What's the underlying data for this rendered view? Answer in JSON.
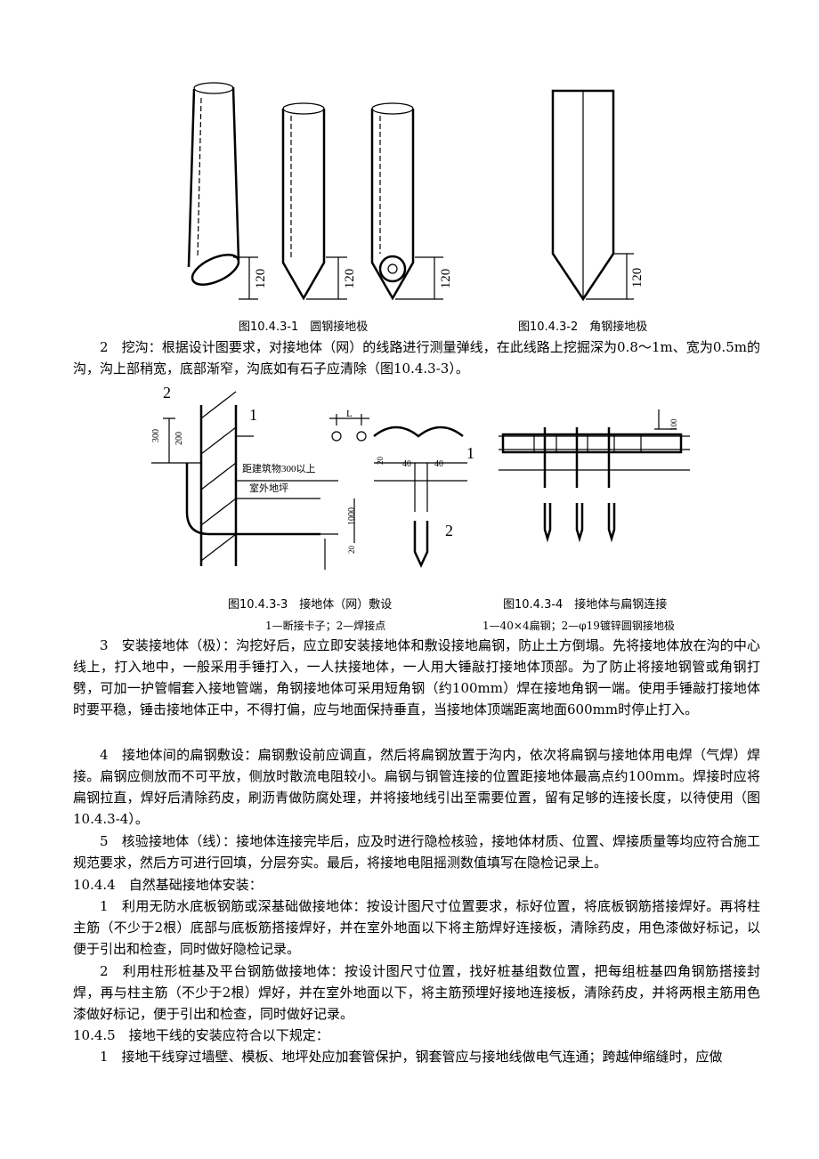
{
  "figures": [
    {
      "caption": "图10.4.3-1　圆钢接地极",
      "dimensions": [
        "120",
        "120",
        "120"
      ]
    },
    {
      "caption": "图10.4.3-2　角钢接地极",
      "dimensions": [
        "120"
      ]
    },
    {
      "caption": "图10.4.3-3　接地体（网）敷设",
      "legend": "1—断接卡子；2—焊接点",
      "labels": [
        "2",
        "300",
        "200",
        "1",
        "L",
        "距建筑物300以上",
        "室外地坪",
        "1000",
        "20",
        "20",
        "40",
        "40",
        "1",
        "2"
      ]
    },
    {
      "caption": "图10.4.3-4　接地体与扁钢连接",
      "legend": "1—40×4扁钢；2—φ19镀锌圆钢接地极",
      "labels": [
        "100"
      ]
    }
  ],
  "paragraphs": [
    "2　挖沟：根据设计图要求，对接地体（网）的线路进行测量弹线，在此线路上挖掘深为0.8～1m、宽为0.5m的沟，沟上部稍宽，底部渐窄，沟底如有石子应清除（图10.4.3-3）。",
    "3　安装接地体（极）：沟挖好后，应立即安装接地体和敷设接地扁钢，防止土方倒塌。先将接地体放在沟的中心线上，打入地中，一般采用手锤打入，一人扶接地体，一人用大锤敲打接地体顶部。为了防止将接地钢管或角钢打劈，可加一护管帽套入接地管端，角钢接地体可采用短角钢（约100mm）焊在接地角钢一端。使用手锤敲打接地体时要平稳，锤击接地体正中，不得打偏，应与地面保持垂直，当接地体顶端距离地面600mm时停止打入。",
    "4　接地体间的扁钢敷设：扁钢敷设前应调直，然后将扁钢放置于沟内，依次将扁钢与接地体用电焊（气焊）焊接。扁钢应侧放而不可平放，侧放时散流电阻较小。扁钢与钢管连接的位置距接地体最高点约100mm。焊接时应将扁钢拉直，焊好后清除药皮，刷沥青做防腐处理，并将接地线引出至需要位置，留有足够的连接长度，以待使用（图10.4.3-4）。",
    "5　核验接地体（线）：接地体连接完毕后，应及时进行隐检核验，接地体材质、位置、焊接质量等均应符合施工规范要求，然后方可进行回填，分层夯实。最后，将接地电阻摇测数值填写在隐检记录上。",
    "10.4.4　自然基础接地体安装：",
    "1　利用无防水底板钢筋或深基础做接地体：按设计图尺寸位置要求，标好位置，将底板钢筋搭接焊好。再将柱主筋（不少于2根）底部与底板筋搭接焊好，并在室外地面以下将主筋焊好连接板，清除药皮，用色漆做好标记，以便于引出和检查，同时做好隐检记录。",
    "2　利用柱形桩基及平台钢筋做接地体：按设计图尺寸位置，找好桩基组数位置，把每组桩基四角钢筋搭接封焊，再与柱主筋（不少于2根）焊好，并在室外地面以下，将主筋预埋好接地连接板，清除药皮，并将两根主筋用色漆做好标记，便于引出和检查，同时做好记录。",
    "10.4.5　接地干线的安装应符合以下规定：",
    "1　接地干线穿过墙壁、模板、地坪处应加套管保护，钢套管应与接地线做电气连通；跨越伸缩缝时，应做"
  ]
}
